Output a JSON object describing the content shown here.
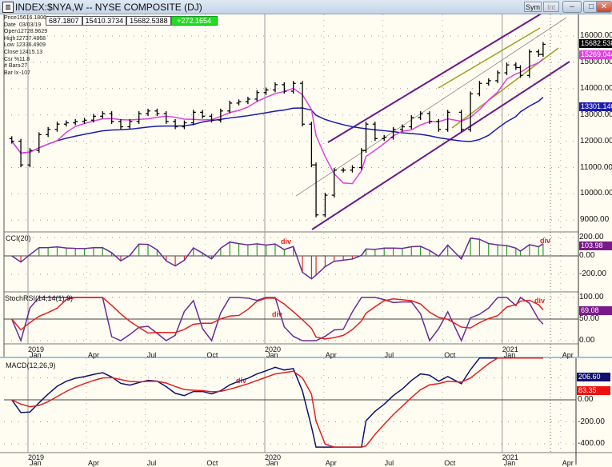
{
  "window": {
    "title": "INDEX:$NYA,W -- NYSE COMPOSITE (DJ)",
    "buttons": {
      "sym": "Sym",
      "int": "Int",
      "minimize": "–",
      "maximize": "□",
      "close": "✕"
    }
  },
  "info_box": [
    {
      "label": "Price",
      "value": "15616.1806"
    },
    {
      "label": "Date",
      "value": "03/03/19"
    },
    {
      "label": "Open",
      "value": "12728.9629"
    },
    {
      "label": "High",
      "value": "12737.4868"
    },
    {
      "label": "Low",
      "value": "12336.4909"
    },
    {
      "label": "Close",
      "value": "12415.13"
    },
    {
      "label": "Csr %",
      "value": "11.8"
    },
    {
      "label": "# Bars",
      "value": "-27"
    },
    {
      "label": "Bar Ix",
      "value": "-107"
    }
  ],
  "top_values": [
    "687.1807",
    "15410.3734",
    "15682.5388",
    "+272.1654"
  ],
  "colors": {
    "background": "#fffdf2",
    "bars": "#000000",
    "ma_short": "#e040e0",
    "ma_long": "#1a1ab0",
    "channel": "#6a1a8a",
    "inner_channel": "#a0a020",
    "cci_pos": "#2a9a2a",
    "cci_neg": "#d03030",
    "osc_line": "#6a2a9a",
    "signal": "#e02020",
    "macd_line": "#101070",
    "div_text": "#e02020"
  },
  "chart_data": [
    {
      "type": "ohlc",
      "panel": "price",
      "timeframe": "weekly",
      "y_ticks": [
        9000,
        10000,
        11000,
        12000,
        13000,
        14000,
        15000,
        16000
      ],
      "y_tick_labels": [
        "9000.00",
        "10000.00",
        "11000.00",
        "12000.00",
        "13000.00",
        "14000.00",
        "15000.00",
        "16000.00"
      ],
      "ylim": [
        8700,
        16900
      ],
      "grid": true,
      "series": [
        {
          "dates": [
            "2018-12-07",
            "2018-12-21",
            "2019-01-04",
            "2019-01-18",
            "2019-02-01",
            "2019-02-15",
            "2019-03-01",
            "2019-03-15",
            "2019-03-29",
            "2019-04-12",
            "2019-04-26",
            "2019-05-10",
            "2019-05-24",
            "2019-06-07",
            "2019-06-21",
            "2019-07-05",
            "2019-07-19",
            "2019-08-02",
            "2019-08-16",
            "2019-08-30",
            "2019-09-13",
            "2019-09-27",
            "2019-10-11",
            "2019-10-25",
            "2019-11-08",
            "2019-11-22",
            "2019-12-06",
            "2019-12-20",
            "2020-01-03",
            "2020-01-17",
            "2020-01-31",
            "2020-02-14",
            "2020-02-28",
            "2020-03-13",
            "2020-03-20",
            "2020-04-03",
            "2020-04-17",
            "2020-05-01",
            "2020-05-15",
            "2020-05-29",
            "2020-06-05",
            "2020-06-19",
            "2020-07-03",
            "2020-07-17",
            "2020-07-31",
            "2020-08-14",
            "2020-08-28",
            "2020-09-11",
            "2020-09-25",
            "2020-10-09",
            "2020-10-30",
            "2020-11-13",
            "2020-11-27",
            "2020-12-11",
            "2020-12-25",
            "2021-01-08",
            "2021-01-22",
            "2021-01-29",
            "2021-02-12",
            "2021-02-26",
            "2021-03-05"
          ],
          "close": [
            12000,
            11100,
            11650,
            12250,
            12450,
            12650,
            12700,
            12750,
            12800,
            12950,
            13050,
            12750,
            12550,
            12750,
            13050,
            13150,
            13050,
            12750,
            12550,
            12700,
            13100,
            12950,
            12800,
            13150,
            13450,
            13500,
            13600,
            13850,
            13950,
            14150,
            13900,
            14200,
            12650,
            11100,
            9200,
            9950,
            10900,
            10900,
            11000,
            11650,
            12650,
            12100,
            12150,
            12450,
            12550,
            12900,
            13050,
            12750,
            12450,
            13100,
            12450,
            13800,
            14200,
            14300,
            14600,
            14900,
            14800,
            14500,
            15400,
            15300,
            15682.5
          ]
        }
      ],
      "last_value_labels": [
        {
          "text": "15682.538",
          "color": "#000000"
        },
        {
          "text": "15269.044",
          "color": "#e040e0"
        },
        {
          "text": "13301.140",
          "color": "#1a1ab0"
        }
      ]
    },
    {
      "type": "bar+line",
      "panel": "cci",
      "title": "CCI(20)",
      "y_tick_labels": [
        "200.00",
        "0.00",
        "-200.00"
      ],
      "ylim": [
        -300,
        300
      ],
      "last_value": {
        "text": "103.98",
        "color": "#7a1a8a"
      },
      "annotations": [
        "div",
        "div"
      ]
    },
    {
      "type": "line",
      "panel": "stochrsi",
      "title": "StochRSI(14,14(1),9)",
      "y_tick_labels": [
        "100.00",
        "50.00",
        "0.00"
      ],
      "ylim": [
        0,
        100
      ],
      "last_value": {
        "text": "69.08",
        "color": "#7a1a8a"
      },
      "annotations": [
        "div",
        "div"
      ]
    },
    {
      "type": "line",
      "panel": "macd",
      "title": "MACD(12,26,9)",
      "y_tick_labels": [
        "0.00",
        "-200.00",
        "-400.00"
      ],
      "ylim": [
        -440,
        390
      ],
      "last_values": [
        {
          "text": "206.60",
          "color": "#101070"
        },
        {
          "text": "83.35",
          "color": "#ee1111"
        }
      ],
      "annotations": [
        "div"
      ]
    }
  ],
  "x_axis": {
    "labels": [
      {
        "month": "Jan",
        "year": "2019",
        "date": "2019-01-01"
      },
      {
        "month": "Apr",
        "year": "",
        "date": "2019-04-01"
      },
      {
        "month": "Jul",
        "year": "",
        "date": "2019-07-01"
      },
      {
        "month": "Oct",
        "year": "",
        "date": "2019-10-01"
      },
      {
        "month": "Jan",
        "year": "2020",
        "date": "2020-01-01"
      },
      {
        "month": "Apr",
        "year": "",
        "date": "2020-04-01"
      },
      {
        "month": "Jul",
        "year": "",
        "date": "2020-07-01"
      },
      {
        "month": "Oct",
        "year": "",
        "date": "2020-10-01"
      },
      {
        "month": "Jan",
        "year": "2021",
        "date": "2021-01-01"
      },
      {
        "month": "Apr",
        "year": "",
        "date": "2021-04-01"
      }
    ]
  }
}
